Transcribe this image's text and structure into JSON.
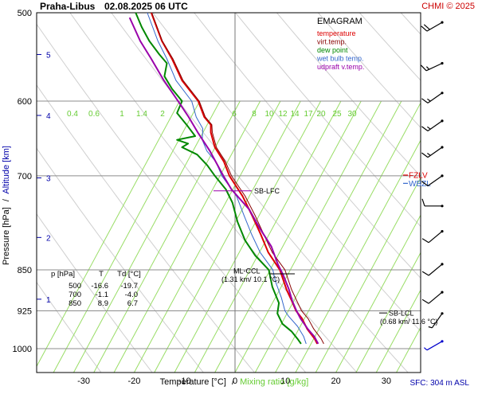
{
  "header": {
    "station": "Praha-Libus",
    "datetime": "02.08.2025 06 UTC",
    "credit": "CHMI © 2025"
  },
  "footer": {
    "sfc": "SFC: 304 m ASL"
  },
  "chart_data": {
    "type": "line",
    "title": "EMAGRAM",
    "xlabel_temp": "Temperature [°C]",
    "xlabel_sep": "/",
    "xlabel_mix": "Mixing ratio [g/kg]",
    "ylabel_p": "Pressure [hPa]",
    "ylabel_sep": "/",
    "ylabel_alt": "Altitude [km]",
    "xlim": [
      -40,
      33
    ],
    "ylim": [
      1015,
      500
    ],
    "y_scale": "log",
    "x_ticks": [
      -30,
      -20,
      -10,
      0,
      10,
      20,
      30
    ],
    "p_ticks": [
      500,
      600,
      700,
      850,
      925,
      1000
    ],
    "alt_ticks": [
      {
        "label": "1",
        "p": 903
      },
      {
        "label": "2",
        "p": 795
      },
      {
        "label": "3",
        "p": 703
      },
      {
        "label": "4",
        "p": 618
      },
      {
        "label": "5",
        "p": 545
      }
    ],
    "mixing_ratio_labels": [
      "0.4",
      "0.6",
      "1",
      "1.4",
      "2",
      "6",
      "8",
      "10",
      "12",
      "14",
      "17",
      "20",
      "25",
      "30"
    ],
    "mixing_ratio_lines_at_bottom": [
      -40,
      -36,
      -32,
      -28,
      -24,
      -20,
      -16,
      -12,
      -8,
      -4,
      0,
      4,
      8,
      12,
      16,
      20,
      24,
      28,
      32
    ],
    "legend": [
      {
        "label": "temperature",
        "color": "#dd0000"
      },
      {
        "label": "virt.temp.",
        "color": "#880000"
      },
      {
        "label": "dew point",
        "color": "#008800"
      },
      {
        "label": "wet bulb temp.",
        "color": "#3366cc"
      },
      {
        "label": "udpraft v.temp.",
        "color": "#9900aa"
      }
    ],
    "series": [
      {
        "name": "temperature",
        "color": "#dd0000",
        "points": [
          [
            16.3,
            990
          ],
          [
            15.8,
            980
          ],
          [
            14.3,
            960
          ],
          [
            13.3,
            940
          ],
          [
            12.1,
            925
          ],
          [
            11.2,
            905
          ],
          [
            10.2,
            885
          ],
          [
            8.9,
            850
          ],
          [
            6.6,
            820
          ],
          [
            5.1,
            790
          ],
          [
            3.4,
            760
          ],
          [
            1.5,
            730
          ],
          [
            -1.1,
            700
          ],
          [
            -2.2,
            680
          ],
          [
            -4.0,
            660
          ],
          [
            -4.8,
            640
          ],
          [
            -4.8,
            630
          ],
          [
            -6.1,
            620
          ],
          [
            -7.3,
            600
          ],
          [
            -10.5,
            575
          ],
          [
            -12.5,
            550
          ],
          [
            -14.5,
            530
          ],
          [
            -16.6,
            500
          ]
        ]
      },
      {
        "name": "virt.temp.",
        "color": "#880000",
        "points": [
          [
            17.6,
            990
          ],
          [
            17.1,
            980
          ],
          [
            15.6,
            960
          ],
          [
            14.5,
            940
          ],
          [
            13.2,
            925
          ],
          [
            12.2,
            905
          ],
          [
            11.2,
            885
          ],
          [
            9.9,
            850
          ],
          [
            7.4,
            820
          ],
          [
            5.7,
            790
          ],
          [
            4.0,
            760
          ],
          [
            2.0,
            730
          ],
          [
            -0.7,
            700
          ],
          [
            -1.9,
            680
          ],
          [
            -3.7,
            660
          ],
          [
            -4.5,
            640
          ],
          [
            -4.6,
            630
          ],
          [
            -5.9,
            620
          ],
          [
            -7.1,
            600
          ],
          [
            -10.3,
            575
          ],
          [
            -12.3,
            550
          ],
          [
            -14.4,
            530
          ],
          [
            -16.5,
            500
          ]
        ]
      },
      {
        "name": "dew point",
        "color": "#008800",
        "points": [
          [
            13.1,
            990
          ],
          [
            12.4,
            980
          ],
          [
            11.2,
            965
          ],
          [
            9.4,
            950
          ],
          [
            8.4,
            930
          ],
          [
            8.7,
            910
          ],
          [
            7.4,
            880
          ],
          [
            6.7,
            850
          ],
          [
            4.0,
            825
          ],
          [
            2.0,
            800
          ],
          [
            0.5,
            770
          ],
          [
            -0.5,
            740
          ],
          [
            -1.8,
            720
          ],
          [
            -4.0,
            700
          ],
          [
            -5.5,
            685
          ],
          [
            -7.5,
            670
          ],
          [
            -10.5,
            660
          ],
          [
            -9.3,
            655
          ],
          [
            -11.5,
            650
          ],
          [
            -7.9,
            645
          ],
          [
            -9.6,
            630
          ],
          [
            -11.5,
            615
          ],
          [
            -10.5,
            600
          ],
          [
            -12.5,
            585
          ],
          [
            -14.0,
            570
          ],
          [
            -13.5,
            555
          ],
          [
            -15.0,
            545
          ],
          [
            -17.0,
            530
          ],
          [
            -18.5,
            515
          ],
          [
            -19.7,
            500
          ]
        ]
      },
      {
        "name": "wet bulb temp.",
        "color": "#3366cc",
        "points": [
          [
            14.1,
            990
          ],
          [
            13.6,
            975
          ],
          [
            12.4,
            955
          ],
          [
            10.6,
            935
          ],
          [
            9.9,
            925
          ],
          [
            9.2,
            900
          ],
          [
            8.0,
            870
          ],
          [
            7.5,
            850
          ],
          [
            5.0,
            820
          ],
          [
            3.3,
            790
          ],
          [
            1.8,
            760
          ],
          [
            0.3,
            730
          ],
          [
            -2.6,
            700
          ],
          [
            -3.8,
            680
          ],
          [
            -5.6,
            665
          ],
          [
            -6.5,
            650
          ],
          [
            -6.4,
            635
          ],
          [
            -7.7,
            620
          ],
          [
            -8.6,
            600
          ],
          [
            -11.7,
            575
          ],
          [
            -13.5,
            550
          ],
          [
            -15.3,
            530
          ],
          [
            -17.4,
            500
          ]
        ]
      },
      {
        "name": "udpraft v.temp.",
        "color": "#9900aa",
        "points": [
          [
            16.5,
            990
          ],
          [
            15.7,
            975
          ],
          [
            14.4,
            960
          ],
          [
            13.0,
            940
          ],
          [
            12.2,
            925
          ],
          [
            11.3,
            905
          ],
          [
            10.7,
            885
          ],
          [
            9.6,
            860
          ],
          [
            8.5,
            840
          ],
          [
            7.2,
            810
          ],
          [
            4.9,
            780
          ],
          [
            2.8,
            750
          ],
          [
            -0.7,
            720
          ],
          [
            -2.3,
            700
          ],
          [
            -5.0,
            665
          ],
          [
            -7.4,
            640
          ],
          [
            -9.2,
            620
          ],
          [
            -11.3,
            600
          ],
          [
            -14.1,
            575
          ],
          [
            -16.6,
            550
          ],
          [
            -18.8,
            530
          ],
          [
            -20.9,
            505
          ]
        ]
      }
    ],
    "levels": [
      {
        "label": "FZLV",
        "p": 699,
        "color": "#dd0000"
      },
      {
        "label": "WBZL",
        "p": 711,
        "color": "#3366cc"
      }
    ],
    "annotations": [
      {
        "label": "SB-LFC",
        "p": 722,
        "color": "#9900aa"
      },
      {
        "label": "ML-CCL",
        "sub": "(1.31 km/ 10.1 °C)",
        "p": 857,
        "color": "#000000"
      },
      {
        "label": "SB-LCL",
        "sub": "(0.68 km/ 11.6 °C)",
        "p": 929,
        "color": "#000000"
      }
    ],
    "table": {
      "headers": [
        "p [hPa]",
        "T",
        "Td [°C]"
      ],
      "rows": [
        [
          "500",
          "-16.6",
          "-19.7"
        ],
        [
          "700",
          "-1.1",
          "-4.0"
        ],
        [
          "850",
          "8.9",
          "6.7"
        ]
      ]
    },
    "wind_barbs": [
      {
        "p": 510,
        "dir": 240,
        "kt": 20
      },
      {
        "p": 555,
        "dir": 245,
        "kt": 15
      },
      {
        "p": 590,
        "dir": 235,
        "kt": 15
      },
      {
        "p": 625,
        "dir": 235,
        "kt": 15
      },
      {
        "p": 660,
        "dir": 235,
        "kt": 15
      },
      {
        "p": 700,
        "dir": 235,
        "kt": 10
      },
      {
        "p": 745,
        "dir": 270,
        "kt": 10
      },
      {
        "p": 785,
        "dir": 230,
        "kt": 10
      },
      {
        "p": 840,
        "dir": 230,
        "kt": 10
      },
      {
        "p": 890,
        "dir": 230,
        "kt": 10
      },
      {
        "p": 930,
        "dir": 215,
        "kt": 5
      },
      {
        "p": 985,
        "dir": 240,
        "kt": 5
      }
    ]
  }
}
